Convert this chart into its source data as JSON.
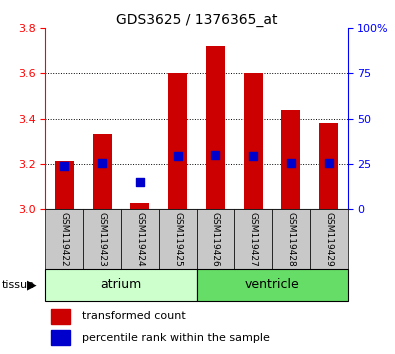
{
  "title": "GDS3625 / 1376365_at",
  "samples": [
    "GSM119422",
    "GSM119423",
    "GSM119424",
    "GSM119425",
    "GSM119426",
    "GSM119427",
    "GSM119428",
    "GSM119429"
  ],
  "bar_tops": [
    3.21,
    3.33,
    3.025,
    3.6,
    3.72,
    3.6,
    3.44,
    3.38
  ],
  "bar_base": 3.0,
  "blue_y": [
    3.19,
    3.205,
    3.12,
    3.235,
    3.24,
    3.235,
    3.205,
    3.205
  ],
  "ylim_left": [
    3.0,
    3.8
  ],
  "ylim_right": [
    0,
    100
  ],
  "yticks_left": [
    3.0,
    3.2,
    3.4,
    3.6,
    3.8
  ],
  "yticks_right": [
    0,
    25,
    50,
    75,
    100
  ],
  "ytick_labels_right": [
    "0",
    "25",
    "50",
    "75",
    "100%"
  ],
  "bar_color": "#cc0000",
  "blue_color": "#0000cc",
  "atrium_label": "atrium",
  "ventricle_label": "ventricle",
  "tissue_label": "tissue",
  "legend_items": [
    "transformed count",
    "percentile rank within the sample"
  ],
  "background_color": "#ffffff",
  "tissue_row_bg_atrium": "#ccffcc",
  "tissue_row_bg_ventricle": "#66dd66",
  "sample_row_bg": "#c8c8c8",
  "bar_width": 0.5
}
